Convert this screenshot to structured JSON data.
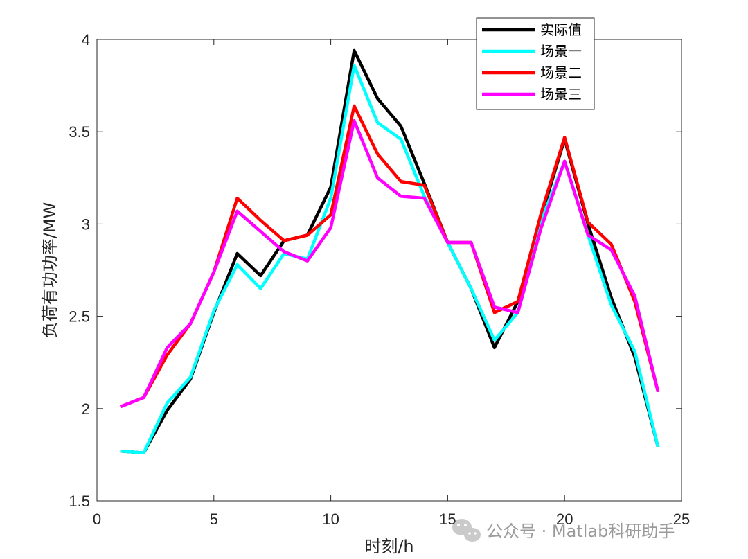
{
  "chart_data": {
    "type": "line",
    "xlabel": "时刻/h",
    "ylabel": "负荷有功功率/MW",
    "xlim": [
      0,
      25
    ],
    "ylim": [
      1.5,
      4
    ],
    "xticks": [
      0,
      5,
      10,
      15,
      20,
      25
    ],
    "yticks": [
      1.5,
      2,
      2.5,
      3,
      3.5,
      4
    ],
    "xtick_labels": [
      "0",
      "5",
      "10",
      "15",
      "20",
      "25"
    ],
    "ytick_labels": [
      "1.5",
      "2",
      "2.5",
      "3",
      "3.5",
      "4"
    ],
    "grid": false,
    "legend_position": "top-right",
    "x": [
      1,
      2,
      3,
      4,
      5,
      6,
      7,
      8,
      9,
      10,
      11,
      12,
      13,
      14,
      15,
      16,
      17,
      18,
      19,
      20,
      21,
      22,
      23,
      24
    ],
    "series": [
      {
        "name": "实际值",
        "color": "#000000",
        "values": [
          1.77,
          1.76,
          1.99,
          2.16,
          2.52,
          2.84,
          2.72,
          2.91,
          2.94,
          3.2,
          3.94,
          3.68,
          3.53,
          3.22,
          2.9,
          2.65,
          2.33,
          2.58,
          3.04,
          3.46,
          3.0,
          2.6,
          2.28,
          1.79
        ]
      },
      {
        "name": "场景一",
        "color": "#00ffff",
        "values": [
          1.77,
          1.76,
          2.03,
          2.17,
          2.53,
          2.78,
          2.65,
          2.84,
          2.81,
          3.14,
          3.86,
          3.55,
          3.46,
          3.15,
          2.9,
          2.65,
          2.37,
          2.52,
          3.02,
          3.34,
          2.94,
          2.56,
          2.31,
          1.79
        ]
      },
      {
        "name": "场景二",
        "color": "#ff0000",
        "values": [
          2.01,
          2.06,
          2.29,
          2.46,
          2.74,
          3.14,
          3.02,
          2.91,
          2.94,
          3.05,
          3.64,
          3.38,
          3.23,
          3.21,
          2.9,
          2.9,
          2.52,
          2.58,
          3.06,
          3.47,
          3.01,
          2.89,
          2.58,
          2.09
        ]
      },
      {
        "name": "场景三",
        "color": "#ff00ff",
        "values": [
          2.01,
          2.06,
          2.33,
          2.46,
          2.74,
          3.07,
          2.96,
          2.85,
          2.8,
          2.98,
          3.56,
          3.25,
          3.15,
          3.14,
          2.9,
          2.9,
          2.55,
          2.52,
          2.98,
          3.34,
          2.94,
          2.86,
          2.61,
          2.09
        ]
      }
    ]
  },
  "watermark": {
    "text": "公众号 · Matlab科研助手",
    "icon": "wechat-icon"
  }
}
